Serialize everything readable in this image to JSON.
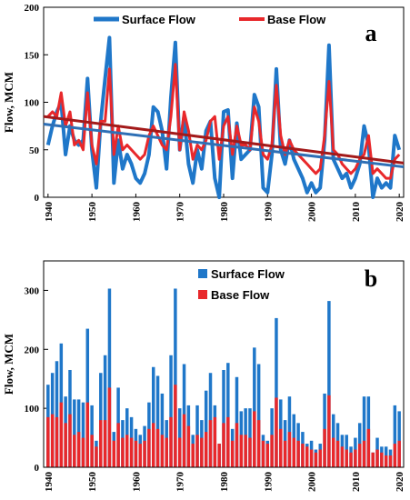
{
  "colors": {
    "surface": "#1F77C9",
    "base": "#E8282B",
    "trend_surface": "#2E6FB5",
    "trend_base": "#A31A1A"
  },
  "chart_data": [
    {
      "type": "line",
      "panel": "a",
      "ylabel": "Flow, MCM",
      "ylim": [
        0,
        200
      ],
      "yticks": [
        0,
        50,
        100,
        150,
        200
      ],
      "xlim": [
        1939,
        2021
      ],
      "xticks": [
        1940,
        1950,
        1960,
        1970,
        1980,
        1990,
        2000,
        2010,
        2020
      ],
      "legend": [
        "Surface Flow",
        "Base Flow"
      ],
      "legend_placement": "top",
      "grid": false,
      "x": [
        1940,
        1941,
        1942,
        1943,
        1944,
        1945,
        1946,
        1947,
        1948,
        1949,
        1950,
        1951,
        1952,
        1953,
        1954,
        1955,
        1956,
        1957,
        1958,
        1959,
        1960,
        1961,
        1962,
        1963,
        1964,
        1965,
        1966,
        1967,
        1968,
        1969,
        1970,
        1971,
        1972,
        1973,
        1974,
        1975,
        1976,
        1977,
        1978,
        1979,
        1980,
        1981,
        1982,
        1983,
        1984,
        1985,
        1986,
        1987,
        1988,
        1989,
        1990,
        1991,
        1992,
        1993,
        1994,
        1995,
        1996,
        1997,
        1998,
        1999,
        2000,
        2001,
        2002,
        2003,
        2004,
        2005,
        2006,
        2007,
        2008,
        2009,
        2010,
        2011,
        2012,
        2013,
        2014,
        2015,
        2016,
        2017,
        2018,
        2019,
        2020
      ],
      "series": [
        {
          "name": "Surface Flow",
          "values": [
            55,
            75,
            90,
            100,
            45,
            75,
            60,
            55,
            60,
            125,
            50,
            10,
            80,
            125,
            168,
            15,
            60,
            30,
            45,
            35,
            20,
            15,
            25,
            45,
            95,
            90,
            70,
            30,
            105,
            163,
            50,
            85,
            35,
            15,
            50,
            30,
            70,
            80,
            20,
            0,
            90,
            92,
            20,
            78,
            40,
            45,
            50,
            108,
            95,
            10,
            5,
            45,
            135,
            50,
            35,
            60,
            40,
            30,
            20,
            5,
            15,
            5,
            10,
            60,
            160,
            40,
            30,
            20,
            25,
            10,
            20,
            35,
            75,
            55,
            0,
            20,
            10,
            15,
            10,
            65,
            50
          ]
        },
        {
          "name": "Base Flow",
          "values": [
            85,
            90,
            85,
            110,
            75,
            90,
            55,
            60,
            50,
            110,
            55,
            35,
            80,
            80,
            135,
            45,
            75,
            50,
            55,
            50,
            45,
            40,
            45,
            65,
            75,
            65,
            55,
            50,
            85,
            140,
            50,
            90,
            70,
            40,
            55,
            50,
            60,
            80,
            85,
            40,
            75,
            85,
            45,
            75,
            55,
            55,
            50,
            95,
            80,
            45,
            40,
            55,
            118,
            65,
            45,
            60,
            50,
            45,
            40,
            35,
            30,
            25,
            30,
            65,
            122,
            50,
            45,
            35,
            30,
            25,
            30,
            40,
            45,
            65,
            25,
            30,
            25,
            20,
            20,
            40,
            45
          ]
        }
      ],
      "trend_lines": [
        {
          "series": "Surface Flow",
          "x": [
            1939,
            2021
          ],
          "y": [
            77,
            32
          ]
        },
        {
          "series": "Base Flow",
          "x": [
            1939,
            2021
          ],
          "y": [
            85,
            36
          ]
        }
      ]
    },
    {
      "type": "bar",
      "panel": "b",
      "stacked": false,
      "ylabel": "Flow, MCM",
      "ylim": [
        0,
        350
      ],
      "yticks": [
        0,
        100,
        200,
        300
      ],
      "xlim": [
        1939,
        2021
      ],
      "xticks": [
        1940,
        1950,
        1960,
        1970,
        1980,
        1990,
        2000,
        2010,
        2020
      ],
      "legend": [
        "Surface Flow",
        "Base Flow"
      ],
      "legend_placement": "top-right",
      "grid": false,
      "x": [
        1940,
        1941,
        1942,
        1943,
        1944,
        1945,
        1946,
        1947,
        1948,
        1949,
        1950,
        1951,
        1952,
        1953,
        1954,
        1955,
        1956,
        1957,
        1958,
        1959,
        1960,
        1961,
        1962,
        1963,
        1964,
        1965,
        1966,
        1967,
        1968,
        1969,
        1970,
        1971,
        1972,
        1973,
        1974,
        1975,
        1976,
        1977,
        1978,
        1979,
        1980,
        1981,
        1982,
        1983,
        1984,
        1985,
        1986,
        1987,
        1988,
        1989,
        1990,
        1991,
        1992,
        1993,
        1994,
        1995,
        1996,
        1997,
        1998,
        1999,
        2000,
        2001,
        2002,
        2003,
        2004,
        2005,
        2006,
        2007,
        2008,
        2009,
        2010,
        2011,
        2012,
        2013,
        2014,
        2015,
        2016,
        2017,
        2018,
        2019,
        2020
      ],
      "series": [
        {
          "name": "Surface Flow",
          "values": [
            140,
            160,
            180,
            210,
            120,
            165,
            115,
            115,
            110,
            235,
            105,
            45,
            160,
            190,
            303,
            60,
            135,
            80,
            100,
            85,
            65,
            55,
            70,
            110,
            170,
            155,
            125,
            80,
            190,
            303,
            100,
            175,
            105,
            55,
            105,
            80,
            130,
            160,
            105,
            40,
            165,
            177,
            65,
            153,
            95,
            100,
            100,
            203,
            175,
            55,
            45,
            100,
            253,
            115,
            80,
            120,
            90,
            75,
            60,
            40,
            45,
            30,
            40,
            125,
            282,
            90,
            75,
            55,
            55,
            35,
            50,
            75,
            120,
            120,
            25,
            50,
            35,
            35,
            30,
            105,
            95
          ]
        },
        {
          "name": "Base Flow",
          "values": [
            85,
            90,
            85,
            110,
            75,
            90,
            55,
            60,
            50,
            110,
            55,
            35,
            80,
            80,
            135,
            45,
            75,
            50,
            55,
            50,
            45,
            40,
            45,
            65,
            75,
            65,
            55,
            50,
            85,
            140,
            50,
            90,
            70,
            40,
            55,
            50,
            60,
            80,
            85,
            40,
            75,
            85,
            45,
            75,
            55,
            55,
            50,
            95,
            80,
            45,
            40,
            55,
            118,
            65,
            45,
            60,
            50,
            45,
            40,
            35,
            30,
            25,
            30,
            65,
            122,
            50,
            45,
            35,
            30,
            25,
            30,
            40,
            45,
            65,
            25,
            30,
            25,
            20,
            20,
            40,
            45
          ]
        }
      ]
    }
  ]
}
